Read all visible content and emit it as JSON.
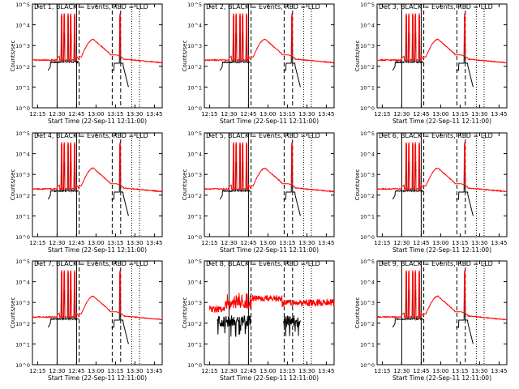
{
  "figure": {
    "background": "#ffffff",
    "foreground": "#000000"
  },
  "chart_data": [
    {
      "type": "line",
      "title": "Det 1, BLACK = Events, RED = LLD",
      "xlabel": "Start Time (22-Sep-11 12:11:00)",
      "ylabel": "Counts/sec",
      "x_ticks": [
        "12:15",
        "12:30",
        "12:45",
        "13:00",
        "13:15",
        "13:30",
        "13:45"
      ],
      "xlim_minutes_after_start": [
        0,
        100
      ],
      "y_scale": "log",
      "ylim": [
        1,
        100000
      ],
      "y_ticks": [
        "10^0",
        "10^1",
        "10^2",
        "10^3",
        "10^4",
        "10^5"
      ],
      "series_colors": {
        "Events": "#000000",
        "LLD": "#ff0000"
      },
      "vertical_markers": {
        "solid": [
          "12:30:00",
          "12:45:00"
        ],
        "dashed": [
          "12:47:00",
          "13:12:30",
          "13:19:00"
        ],
        "dotted": [
          "13:27:30",
          "13:33:30"
        ]
      },
      "pattern": "spikes"
    },
    {
      "type": "line",
      "title": "Det 2, BLACK = Events, RED = LLD",
      "xlabel": "Start Time (22-Sep-11 12:11:00)",
      "ylabel": "Counts/sec",
      "x_ticks": [
        "12:15",
        "12:30",
        "12:45",
        "13:00",
        "13:15",
        "13:30",
        "13:45"
      ],
      "xlim_minutes_after_start": [
        0,
        100
      ],
      "y_scale": "log",
      "ylim": [
        1,
        100000
      ],
      "y_ticks": [
        "10^0",
        "10^1",
        "10^2",
        "10^3",
        "10^4",
        "10^5"
      ],
      "series_colors": {
        "Events": "#000000",
        "LLD": "#ff0000"
      },
      "vertical_markers": {
        "solid": [
          "12:30:00",
          "12:45:00"
        ],
        "dashed": [
          "12:47:00",
          "13:12:30",
          "13:19:00"
        ],
        "dotted": [
          "13:27:30",
          "13:33:30"
        ]
      },
      "pattern": "spikes"
    },
    {
      "type": "line",
      "title": "Det 3, BLACK = Events, RED = LLD",
      "xlabel": "Start Time (22-Sep-11 12:11:00)",
      "ylabel": "Counts/sec",
      "x_ticks": [
        "12:15",
        "12:30",
        "12:45",
        "13:00",
        "13:15",
        "13:30",
        "13:45"
      ],
      "xlim_minutes_after_start": [
        0,
        100
      ],
      "y_scale": "log",
      "ylim": [
        1,
        100000
      ],
      "y_ticks": [
        "10^0",
        "10^1",
        "10^2",
        "10^3",
        "10^4",
        "10^5"
      ],
      "series_colors": {
        "Events": "#000000",
        "LLD": "#ff0000"
      },
      "vertical_markers": {
        "solid": [
          "12:30:00",
          "12:45:00"
        ],
        "dashed": [
          "12:47:00",
          "13:12:30",
          "13:19:00"
        ],
        "dotted": [
          "13:27:30",
          "13:33:30"
        ]
      },
      "pattern": "spikes"
    },
    {
      "type": "line",
      "title": "Det 4, BLACK = Events, RED = LLD",
      "xlabel": "Start Time (22-Sep-11 12:11:00)",
      "ylabel": "Counts/sec",
      "x_ticks": [
        "12:15",
        "12:30",
        "12:45",
        "13:00",
        "13:15",
        "13:30",
        "13:45"
      ],
      "xlim_minutes_after_start": [
        0,
        100
      ],
      "y_scale": "log",
      "ylim": [
        1,
        100000
      ],
      "y_ticks": [
        "10^0",
        "10^1",
        "10^2",
        "10^3",
        "10^4",
        "10^5"
      ],
      "series_colors": {
        "Events": "#000000",
        "LLD": "#ff0000"
      },
      "vertical_markers": {
        "solid": [
          "12:30:00",
          "12:45:00"
        ],
        "dashed": [
          "12:47:00",
          "13:12:30",
          "13:19:00"
        ],
        "dotted": [
          "13:27:30",
          "13:33:30"
        ]
      },
      "pattern": "spikes"
    },
    {
      "type": "line",
      "title": "Det 5, BLACK = Events, RED = LLD",
      "xlabel": "Start Time (22-Sep-11 12:11:00)",
      "ylabel": "Counts/sec",
      "x_ticks": [
        "12:15",
        "12:30",
        "12:45",
        "13:00",
        "13:15",
        "13:30",
        "13:45"
      ],
      "xlim_minutes_after_start": [
        0,
        100
      ],
      "y_scale": "log",
      "ylim": [
        1,
        100000
      ],
      "y_ticks": [
        "10^0",
        "10^1",
        "10^2",
        "10^3",
        "10^4",
        "10^5"
      ],
      "series_colors": {
        "Events": "#000000",
        "LLD": "#ff0000"
      },
      "vertical_markers": {
        "solid": [
          "12:30:00",
          "12:45:00"
        ],
        "dashed": [
          "12:47:00",
          "13:12:30",
          "13:19:00"
        ],
        "dotted": [
          "13:27:30",
          "13:33:30"
        ]
      },
      "pattern": "spikes"
    },
    {
      "type": "line",
      "title": "Det 6, BLACK = Events, RED = LLD",
      "xlabel": "Start Time (22-Sep-11 12:11:00)",
      "ylabel": "Counts/sec",
      "x_ticks": [
        "12:15",
        "12:30",
        "12:45",
        "13:00",
        "13:15",
        "13:30",
        "13:45"
      ],
      "xlim_minutes_after_start": [
        0,
        100
      ],
      "y_scale": "log",
      "ylim": [
        1,
        100000
      ],
      "y_ticks": [
        "10^0",
        "10^1",
        "10^2",
        "10^3",
        "10^4",
        "10^5"
      ],
      "series_colors": {
        "Events": "#000000",
        "LLD": "#ff0000"
      },
      "vertical_markers": {
        "solid": [
          "12:30:00",
          "12:45:00"
        ],
        "dashed": [
          "12:47:00",
          "13:12:30",
          "13:19:00"
        ],
        "dotted": [
          "13:27:30",
          "13:33:30"
        ]
      },
      "pattern": "spikes"
    },
    {
      "type": "line",
      "title": "Det 7, BLACK = Events, RED = LLD",
      "xlabel": "Start Time (22-Sep-11 12:11:00)",
      "ylabel": "Counts/sec",
      "x_ticks": [
        "12:15",
        "12:30",
        "12:45",
        "13:00",
        "13:15",
        "13:30",
        "13:45"
      ],
      "xlim_minutes_after_start": [
        0,
        100
      ],
      "y_scale": "log",
      "ylim": [
        1,
        100000
      ],
      "y_ticks": [
        "10^0",
        "10^1",
        "10^2",
        "10^3",
        "10^4",
        "10^5"
      ],
      "series_colors": {
        "Events": "#000000",
        "LLD": "#ff0000"
      },
      "vertical_markers": {
        "solid": [
          "12:30:00",
          "12:45:00"
        ],
        "dashed": [
          "12:47:00",
          "13:12:30",
          "13:19:00"
        ],
        "dotted": [
          "13:27:30",
          "13:33:30"
        ]
      },
      "pattern": "spikes"
    },
    {
      "type": "line",
      "title": "Det 8, BLACK = Events, RED = LLD",
      "xlabel": "Start Time (22-Sep-11 12:11:00)",
      "ylabel": "Counts/sec",
      "x_ticks": [
        "12:15",
        "12:30",
        "12:45",
        "13:00",
        "13:15",
        "13:30",
        "13:45"
      ],
      "xlim_minutes_after_start": [
        0,
        100
      ],
      "y_scale": "log",
      "ylim": [
        1,
        100000
      ],
      "y_ticks": [
        "10^0",
        "10^1",
        "10^2",
        "10^3",
        "10^4",
        "10^5"
      ],
      "series_colors": {
        "Events": "#000000",
        "LLD": "#ff0000"
      },
      "vertical_markers": {
        "solid": [
          "12:30:00",
          "12:45:00"
        ],
        "dashed": [
          "12:47:00",
          "13:12:30",
          "13:19:00"
        ],
        "dotted": [
          "13:27:30",
          "13:33:30"
        ]
      },
      "pattern": "noisy"
    },
    {
      "type": "line",
      "title": "Det 9, BLACK = Events, RED = LLD",
      "xlabel": "Start Time (22-Sep-11 12:11:00)",
      "ylabel": "Counts/sec",
      "x_ticks": [
        "12:15",
        "12:30",
        "12:45",
        "13:00",
        "13:15",
        "13:30",
        "13:45"
      ],
      "xlim_minutes_after_start": [
        0,
        100
      ],
      "y_scale": "log",
      "ylim": [
        1,
        100000
      ],
      "y_ticks": [
        "10^0",
        "10^1",
        "10^2",
        "10^3",
        "10^4",
        "10^5"
      ],
      "series_colors": {
        "Events": "#000000",
        "LLD": "#ff0000"
      },
      "vertical_markers": {
        "solid": [
          "12:30:00",
          "12:45:00"
        ],
        "dashed": [
          "12:47:00",
          "13:12:30",
          "13:19:00"
        ],
        "dotted": [
          "13:27:30",
          "13:33:30"
        ]
      },
      "pattern": "spikes"
    }
  ]
}
